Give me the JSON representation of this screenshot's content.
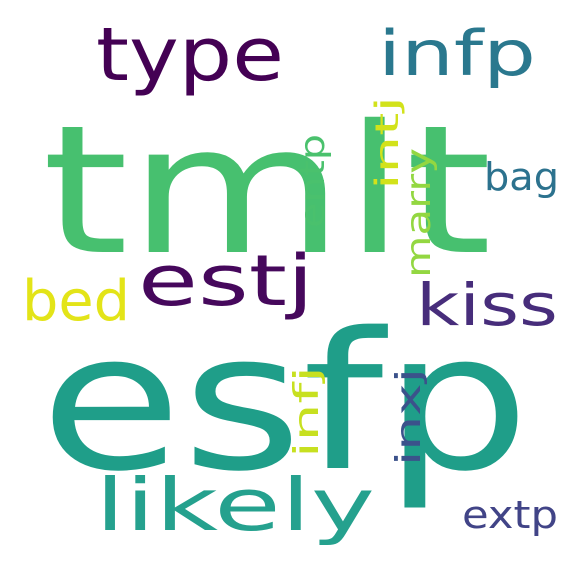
{
  "wordcloud": {
    "background": "#ffffff",
    "words": [
      {
        "text": "tmlt",
        "color": "#47c06f"
      },
      {
        "text": "esfp",
        "color": "#1f9e89"
      },
      {
        "text": "type",
        "color": "#440154"
      },
      {
        "text": "infp",
        "color": "#2a788e"
      },
      {
        "text": "estj",
        "color": "#46085c"
      },
      {
        "text": "kiss",
        "color": "#472d7b"
      },
      {
        "text": "bed",
        "color": "#e3e418"
      },
      {
        "text": "likely",
        "color": "#25a18e"
      },
      {
        "text": "bag",
        "color": "#2c728e"
      },
      {
        "text": "entp",
        "color": "#4ac16d"
      },
      {
        "text": "intj",
        "color": "#d2e21b"
      },
      {
        "text": "marry",
        "color": "#93d741"
      },
      {
        "text": "infj",
        "color": "#c7e020"
      },
      {
        "text": "inxj",
        "color": "#3b528b"
      },
      {
        "text": "extp",
        "color": "#414487"
      }
    ]
  }
}
